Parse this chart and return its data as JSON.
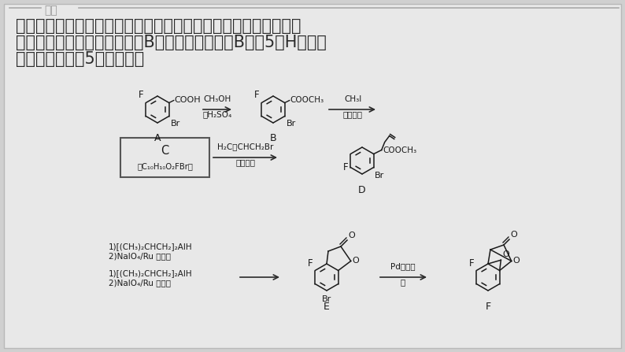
{
  "bg_color": "#d0d0d0",
  "card_color": "#e8e8e8",
  "title_text": "解析",
  "line1": "核磁共振氢谱的吸收峰数目等于有机物中氢元素的种类，即有多少",
  "line2": "种不同化学环境的氢原子，由B的结构简式可知，B中有5种H，所以",
  "line3": "核磁共振氢谱有5组吸收峰。",
  "body_fontsize": 15,
  "chem_color": "#1a1a1a",
  "arrow_color": "#2a2a2a",
  "ring_r": 17
}
